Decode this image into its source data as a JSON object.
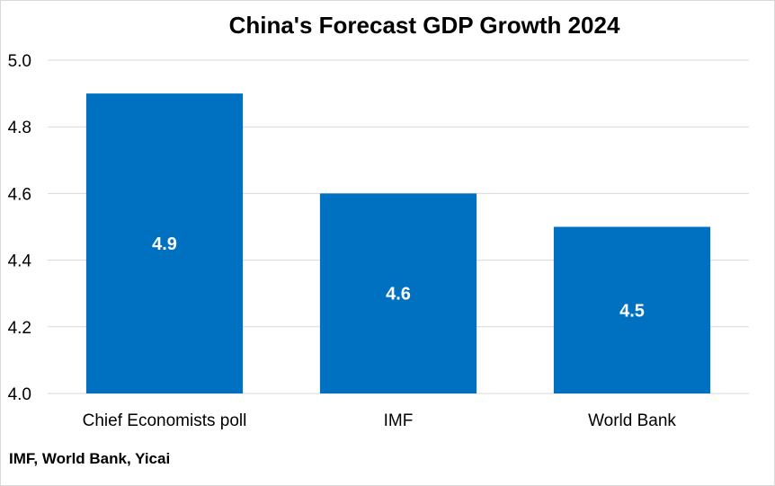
{
  "chart_data": {
    "type": "bar",
    "title": "China's Forecast GDP Growth 2024",
    "categories": [
      "Chief Economists poll",
      "IMF",
      "World Bank"
    ],
    "values": [
      4.9,
      4.6,
      4.5
    ],
    "data_labels": [
      "4.9",
      "4.6",
      "4.5"
    ],
    "xlabel": "",
    "ylabel": "",
    "ylim": [
      4.0,
      5.0
    ],
    "y_ticks": [
      "4.0",
      "4.2",
      "4.4",
      "4.6",
      "4.8",
      "5.0"
    ],
    "grid": true,
    "legend": "none",
    "bar_color": "#0070C0",
    "grid_color": "#d9d9d9"
  },
  "source": "IMF, World Bank, Yicai"
}
